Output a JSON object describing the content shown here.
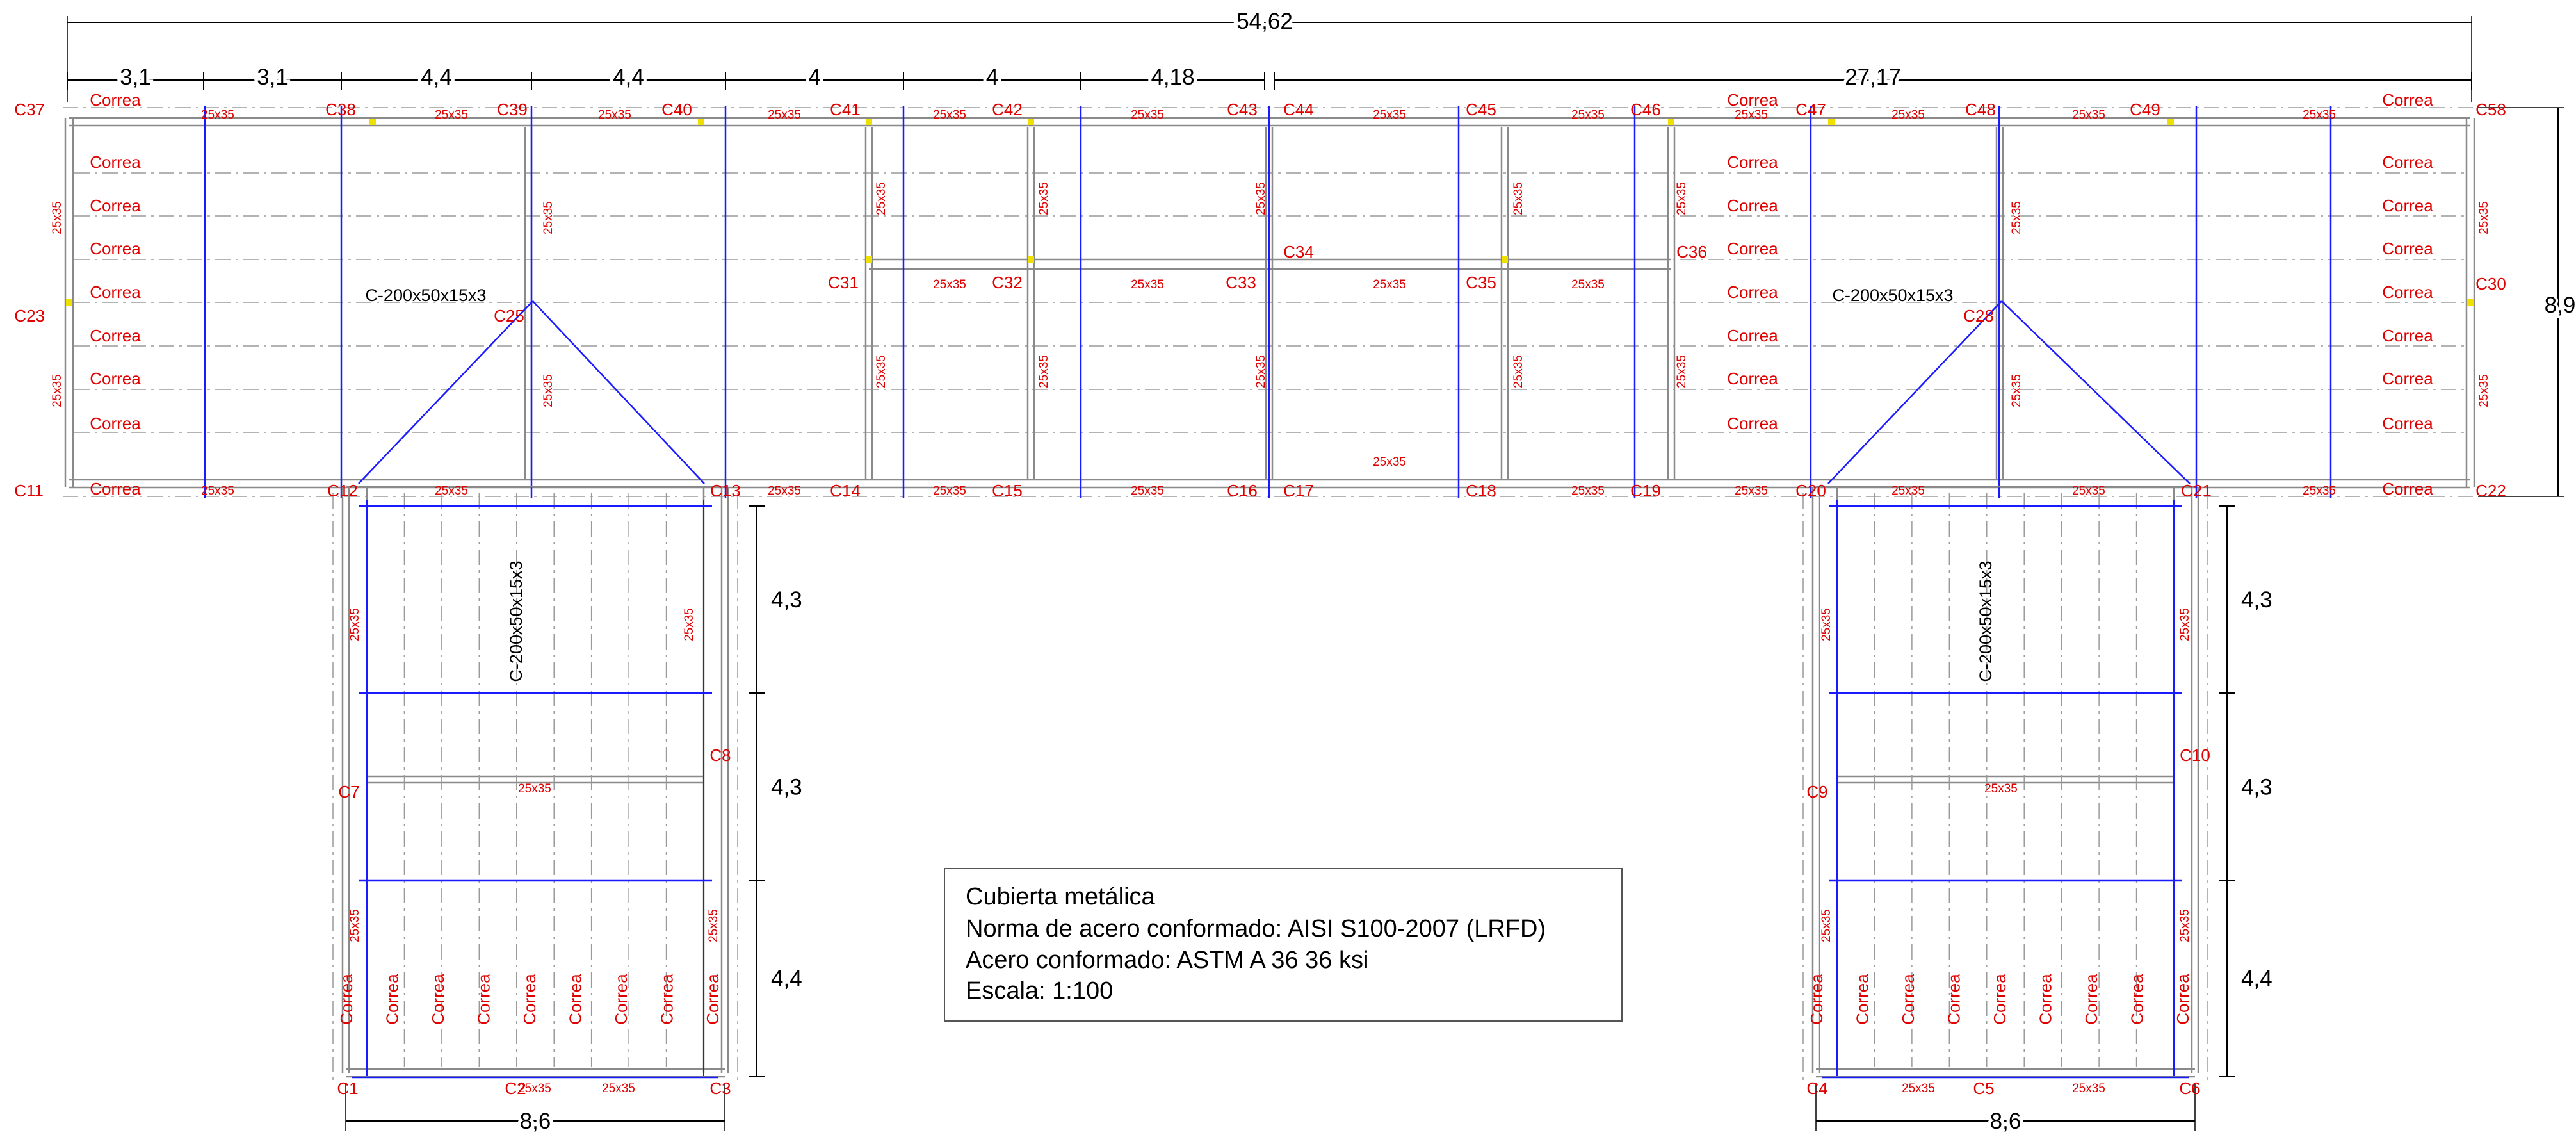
{
  "colors": {
    "purlin_blue": "#1a1aff",
    "label_red": "#e00000",
    "beam_gray": "#8a8a8a",
    "dash_gray": "#9a9a9a",
    "node_yellow": "#f0e000"
  },
  "dimensions": {
    "total": "54,62",
    "top_segments": [
      "3,1",
      "3,1",
      "4,4",
      "4,4",
      "4",
      "4",
      "4,18"
    ],
    "right_span": "27,17",
    "height": "8,9",
    "wing_widths": [
      "8,6",
      "8,6"
    ],
    "wing_segments": [
      "4,3",
      "4,3",
      "4,4"
    ]
  },
  "columns": {
    "top_row": [
      "C37",
      "C38",
      "C39",
      "C40",
      "C41",
      "C42",
      "C43",
      "C44",
      "C45",
      "C46",
      "C47",
      "C48",
      "C49",
      "C58"
    ],
    "bottom_row": [
      "C11",
      "C12",
      "C13",
      "C14",
      "C15",
      "C16",
      "C17",
      "C18",
      "C19",
      "C20",
      "C21",
      "C22"
    ],
    "mid": [
      "C23",
      "C25",
      "C31",
      "C32",
      "C33",
      "C34",
      "C35",
      "C36",
      "C28",
      "C30"
    ],
    "wing": [
      "C7",
      "C8",
      "C9",
      "C10",
      "C1",
      "C2",
      "C3",
      "C4",
      "C5",
      "C6"
    ]
  },
  "beam_label": "25x35",
  "purlin_label": "Correa",
  "section_label": "C-200x50x15x3",
  "note": {
    "line1": "Cubierta metálica",
    "line2": "Norma de acero conformado: AISI S100-2007 (LRFD)",
    "line3": "Acero conformado:  ASTM A 36   36 ksi",
    "line4": "Escala: 1:100"
  }
}
